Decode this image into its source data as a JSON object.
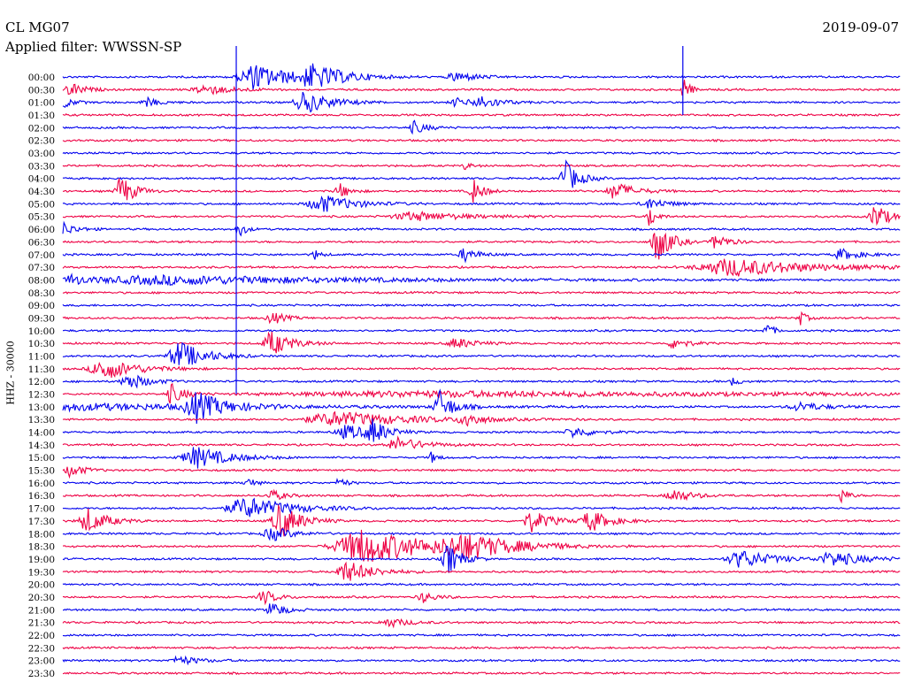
{
  "header": {
    "station": "CL MG07",
    "filter": "Applied filter: WWSSN-SP",
    "date": "2019-09-07"
  },
  "chart_data": {
    "type": "line",
    "title": "CL MG07",
    "subtitle": "Applied filter: WWSSN-SP",
    "ylabel": "HHZ - 30000",
    "date": "2019-09-07",
    "colors": {
      "odd": "#0000ee",
      "even": "#ee0044"
    },
    "rows": [
      "00:00",
      "00:30",
      "01:00",
      "01:30",
      "02:00",
      "02:30",
      "03:00",
      "03:30",
      "04:00",
      "04:30",
      "05:00",
      "05:30",
      "06:00",
      "06:30",
      "07:00",
      "07:30",
      "08:00",
      "08:30",
      "09:00",
      "09:30",
      "10:00",
      "10:30",
      "11:00",
      "11:30",
      "12:00",
      "12:30",
      "13:00",
      "13:30",
      "14:00",
      "14:30",
      "15:00",
      "15:30",
      "16:00",
      "16:30",
      "17:00",
      "17:30",
      "18:00",
      "18:30",
      "19:00",
      "19:30",
      "20:00",
      "20:30",
      "21:00",
      "21:30",
      "22:00",
      "22:30",
      "23:00",
      "23:30"
    ],
    "events": [
      {
        "row": 0,
        "at": 0.23,
        "amp": 14,
        "dur": 0.06
      },
      {
        "row": 0,
        "at": 0.3,
        "amp": 12,
        "dur": 0.05
      },
      {
        "row": 0,
        "at": 0.47,
        "amp": 6,
        "dur": 0.03
      },
      {
        "row": 1,
        "at": 0.01,
        "amp": 8,
        "dur": 0.02
      },
      {
        "row": 1,
        "at": 0.17,
        "amp": 6,
        "dur": 0.04
      },
      {
        "row": 1,
        "at": 0.74,
        "amp": 16,
        "dur": 0.01
      },
      {
        "row": 2,
        "at": 0.0,
        "amp": 7,
        "dur": 0.015
      },
      {
        "row": 2,
        "at": 0.1,
        "amp": 5,
        "dur": 0.02
      },
      {
        "row": 2,
        "at": 0.29,
        "amp": 12,
        "dur": 0.04
      },
      {
        "row": 2,
        "at": 0.47,
        "amp": 5,
        "dur": 0.02
      },
      {
        "row": 2,
        "at": 0.5,
        "amp": 7,
        "dur": 0.03
      },
      {
        "row": 4,
        "at": 0.42,
        "amp": 7,
        "dur": 0.02
      },
      {
        "row": 7,
        "at": 0.48,
        "amp": 4,
        "dur": 0.01
      },
      {
        "row": 8,
        "at": 0.6,
        "amp": 20,
        "dur": 0.02
      },
      {
        "row": 9,
        "at": 0.07,
        "amp": 18,
        "dur": 0.02
      },
      {
        "row": 9,
        "at": 0.33,
        "amp": 9,
        "dur": 0.015
      },
      {
        "row": 9,
        "at": 0.49,
        "amp": 14,
        "dur": 0.015
      },
      {
        "row": 9,
        "at": 0.66,
        "amp": 10,
        "dur": 0.03
      },
      {
        "row": 10,
        "at": 0.31,
        "amp": 10,
        "dur": 0.05
      },
      {
        "row": 10,
        "at": 0.7,
        "amp": 6,
        "dur": 0.03
      },
      {
        "row": 11,
        "at": 0.42,
        "amp": 5,
        "dur": 0.08
      },
      {
        "row": 11,
        "at": 0.7,
        "amp": 14,
        "dur": 0.01
      },
      {
        "row": 11,
        "at": 0.97,
        "amp": 15,
        "dur": 0.02
      },
      {
        "row": 12,
        "at": 0.0,
        "amp": 8,
        "dur": 0.02
      },
      {
        "row": 12,
        "at": 0.21,
        "amp": 10,
        "dur": 0.01
      },
      {
        "row": 13,
        "at": 0.71,
        "amp": 24,
        "dur": 0.02
      },
      {
        "row": 13,
        "at": 0.78,
        "amp": 9,
        "dur": 0.02
      },
      {
        "row": 14,
        "at": 0.3,
        "amp": 6,
        "dur": 0.01
      },
      {
        "row": 14,
        "at": 0.48,
        "amp": 8,
        "dur": 0.02
      },
      {
        "row": 14,
        "at": 0.93,
        "amp": 6,
        "dur": 0.03
      },
      {
        "row": 15,
        "at": 0.8,
        "amp": 10,
        "dur": 0.12
      },
      {
        "row": 16,
        "at": 0.01,
        "amp": 6,
        "dur": 0.02
      },
      {
        "row": 16,
        "at": 0.13,
        "amp": 5,
        "dur": 0.3
      },
      {
        "row": 19,
        "at": 0.25,
        "amp": 7,
        "dur": 0.02
      },
      {
        "row": 19,
        "at": 0.88,
        "amp": 8,
        "dur": 0.01
      },
      {
        "row": 20,
        "at": 0.84,
        "amp": 9,
        "dur": 0.01
      },
      {
        "row": 21,
        "at": 0.25,
        "amp": 14,
        "dur": 0.03
      },
      {
        "row": 21,
        "at": 0.47,
        "amp": 6,
        "dur": 0.03
      },
      {
        "row": 21,
        "at": 0.73,
        "amp": 7,
        "dur": 0.02
      },
      {
        "row": 22,
        "at": 0.14,
        "amp": 16,
        "dur": 0.04
      },
      {
        "row": 23,
        "at": 0.05,
        "amp": 12,
        "dur": 0.05
      },
      {
        "row": 24,
        "at": 0.08,
        "amp": 9,
        "dur": 0.03
      },
      {
        "row": 24,
        "at": 0.8,
        "amp": 5,
        "dur": 0.01
      },
      {
        "row": 25,
        "at": 0.13,
        "amp": 11,
        "dur": 0.02
      },
      {
        "row": 25,
        "at": 0.45,
        "amp": 3,
        "dur": 0.6
      },
      {
        "row": 26,
        "at": 0.0,
        "amp": 4,
        "dur": 0.3
      },
      {
        "row": 26,
        "at": 0.16,
        "amp": 16,
        "dur": 0.04
      },
      {
        "row": 26,
        "at": 0.45,
        "amp": 18,
        "dur": 0.02
      },
      {
        "row": 26,
        "at": 0.88,
        "amp": 5,
        "dur": 0.04
      },
      {
        "row": 27,
        "at": 0.33,
        "amp": 8,
        "dur": 0.12
      },
      {
        "row": 27,
        "at": 0.48,
        "amp": 9,
        "dur": 0.02
      },
      {
        "row": 28,
        "at": 0.34,
        "amp": 8,
        "dur": 0.04
      },
      {
        "row": 28,
        "at": 0.37,
        "amp": 13,
        "dur": 0.02
      },
      {
        "row": 28,
        "at": 0.61,
        "amp": 6,
        "dur": 0.03
      },
      {
        "row": 29,
        "at": 0.4,
        "amp": 8,
        "dur": 0.04
      },
      {
        "row": 30,
        "at": 0.16,
        "amp": 12,
        "dur": 0.05
      },
      {
        "row": 30,
        "at": 0.44,
        "amp": 6,
        "dur": 0.01
      },
      {
        "row": 31,
        "at": 0.01,
        "amp": 8,
        "dur": 0.02
      },
      {
        "row": 32,
        "at": 0.22,
        "amp": 8,
        "dur": 0.01
      },
      {
        "row": 32,
        "at": 0.33,
        "amp": 8,
        "dur": 0.01
      },
      {
        "row": 33,
        "at": 0.25,
        "amp": 6,
        "dur": 0.02
      },
      {
        "row": 33,
        "at": 0.73,
        "amp": 7,
        "dur": 0.03
      },
      {
        "row": 33,
        "at": 0.93,
        "amp": 9,
        "dur": 0.01
      },
      {
        "row": 34,
        "at": 0.22,
        "amp": 12,
        "dur": 0.07
      },
      {
        "row": 35,
        "at": 0.03,
        "amp": 14,
        "dur": 0.03
      },
      {
        "row": 35,
        "at": 0.26,
        "amp": 20,
        "dur": 0.03
      },
      {
        "row": 35,
        "at": 0.56,
        "amp": 12,
        "dur": 0.03
      },
      {
        "row": 35,
        "at": 0.63,
        "amp": 12,
        "dur": 0.03
      },
      {
        "row": 36,
        "at": 0.25,
        "amp": 8,
        "dur": 0.03
      },
      {
        "row": 37,
        "at": 0.36,
        "amp": 20,
        "dur": 0.1
      },
      {
        "row": 37,
        "at": 0.48,
        "amp": 12,
        "dur": 0.08
      },
      {
        "row": 38,
        "at": 0.46,
        "amp": 18,
        "dur": 0.02
      },
      {
        "row": 38,
        "at": 0.81,
        "amp": 10,
        "dur": 0.05
      },
      {
        "row": 38,
        "at": 0.92,
        "amp": 8,
        "dur": 0.05
      },
      {
        "row": 39,
        "at": 0.34,
        "amp": 12,
        "dur": 0.04
      },
      {
        "row": 41,
        "at": 0.24,
        "amp": 8,
        "dur": 0.02
      },
      {
        "row": 41,
        "at": 0.43,
        "amp": 6,
        "dur": 0.02
      },
      {
        "row": 42,
        "at": 0.25,
        "amp": 9,
        "dur": 0.02
      },
      {
        "row": 43,
        "at": 0.39,
        "amp": 5,
        "dur": 0.03
      },
      {
        "row": 46,
        "at": 0.14,
        "amp": 5,
        "dur": 0.03
      }
    ],
    "spikes": [
      {
        "x_frac": 0.207,
        "from_row": 0,
        "to_row": 25
      },
      {
        "x_frac": 0.74,
        "from_row": 0,
        "to_row": 3
      }
    ]
  }
}
